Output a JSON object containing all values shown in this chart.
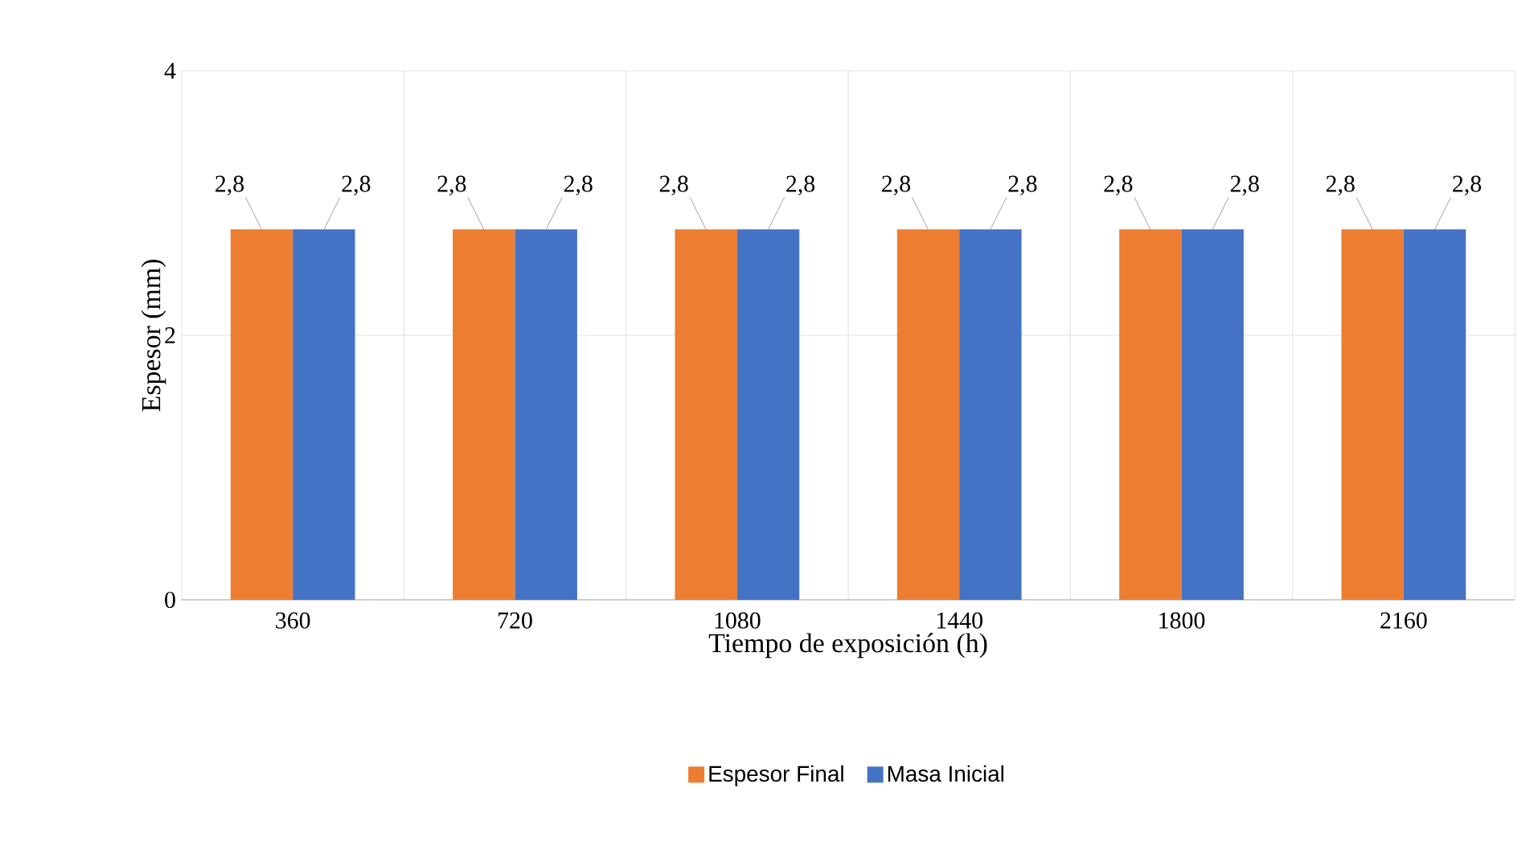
{
  "chart_data": {
    "type": "bar",
    "xlabel": "Tiempo de exposición (h)",
    "ylabel": "Espesor (mm)",
    "categories": [
      "360",
      "720",
      "1080",
      "1440",
      "1800",
      "2160"
    ],
    "series": [
      {
        "name": "Espesor Final",
        "color": "#ed7d31",
        "values": [
          2.8,
          2.8,
          2.8,
          2.8,
          2.8,
          2.8
        ],
        "value_labels": [
          "2,8",
          "2,8",
          "2,8",
          "2,8",
          "2,8",
          "2,8"
        ]
      },
      {
        "name": "Masa Inicial",
        "color": "#4472c4",
        "values": [
          2.8,
          2.8,
          2.8,
          2.8,
          2.8,
          2.8
        ],
        "value_labels": [
          "2,8",
          "2,8",
          "2,8",
          "2,8",
          "2,8",
          "2,8"
        ]
      }
    ],
    "ylim": [
      0,
      4
    ],
    "yticks": [
      0,
      2,
      4
    ],
    "grid": true,
    "legend": "bottom"
  }
}
